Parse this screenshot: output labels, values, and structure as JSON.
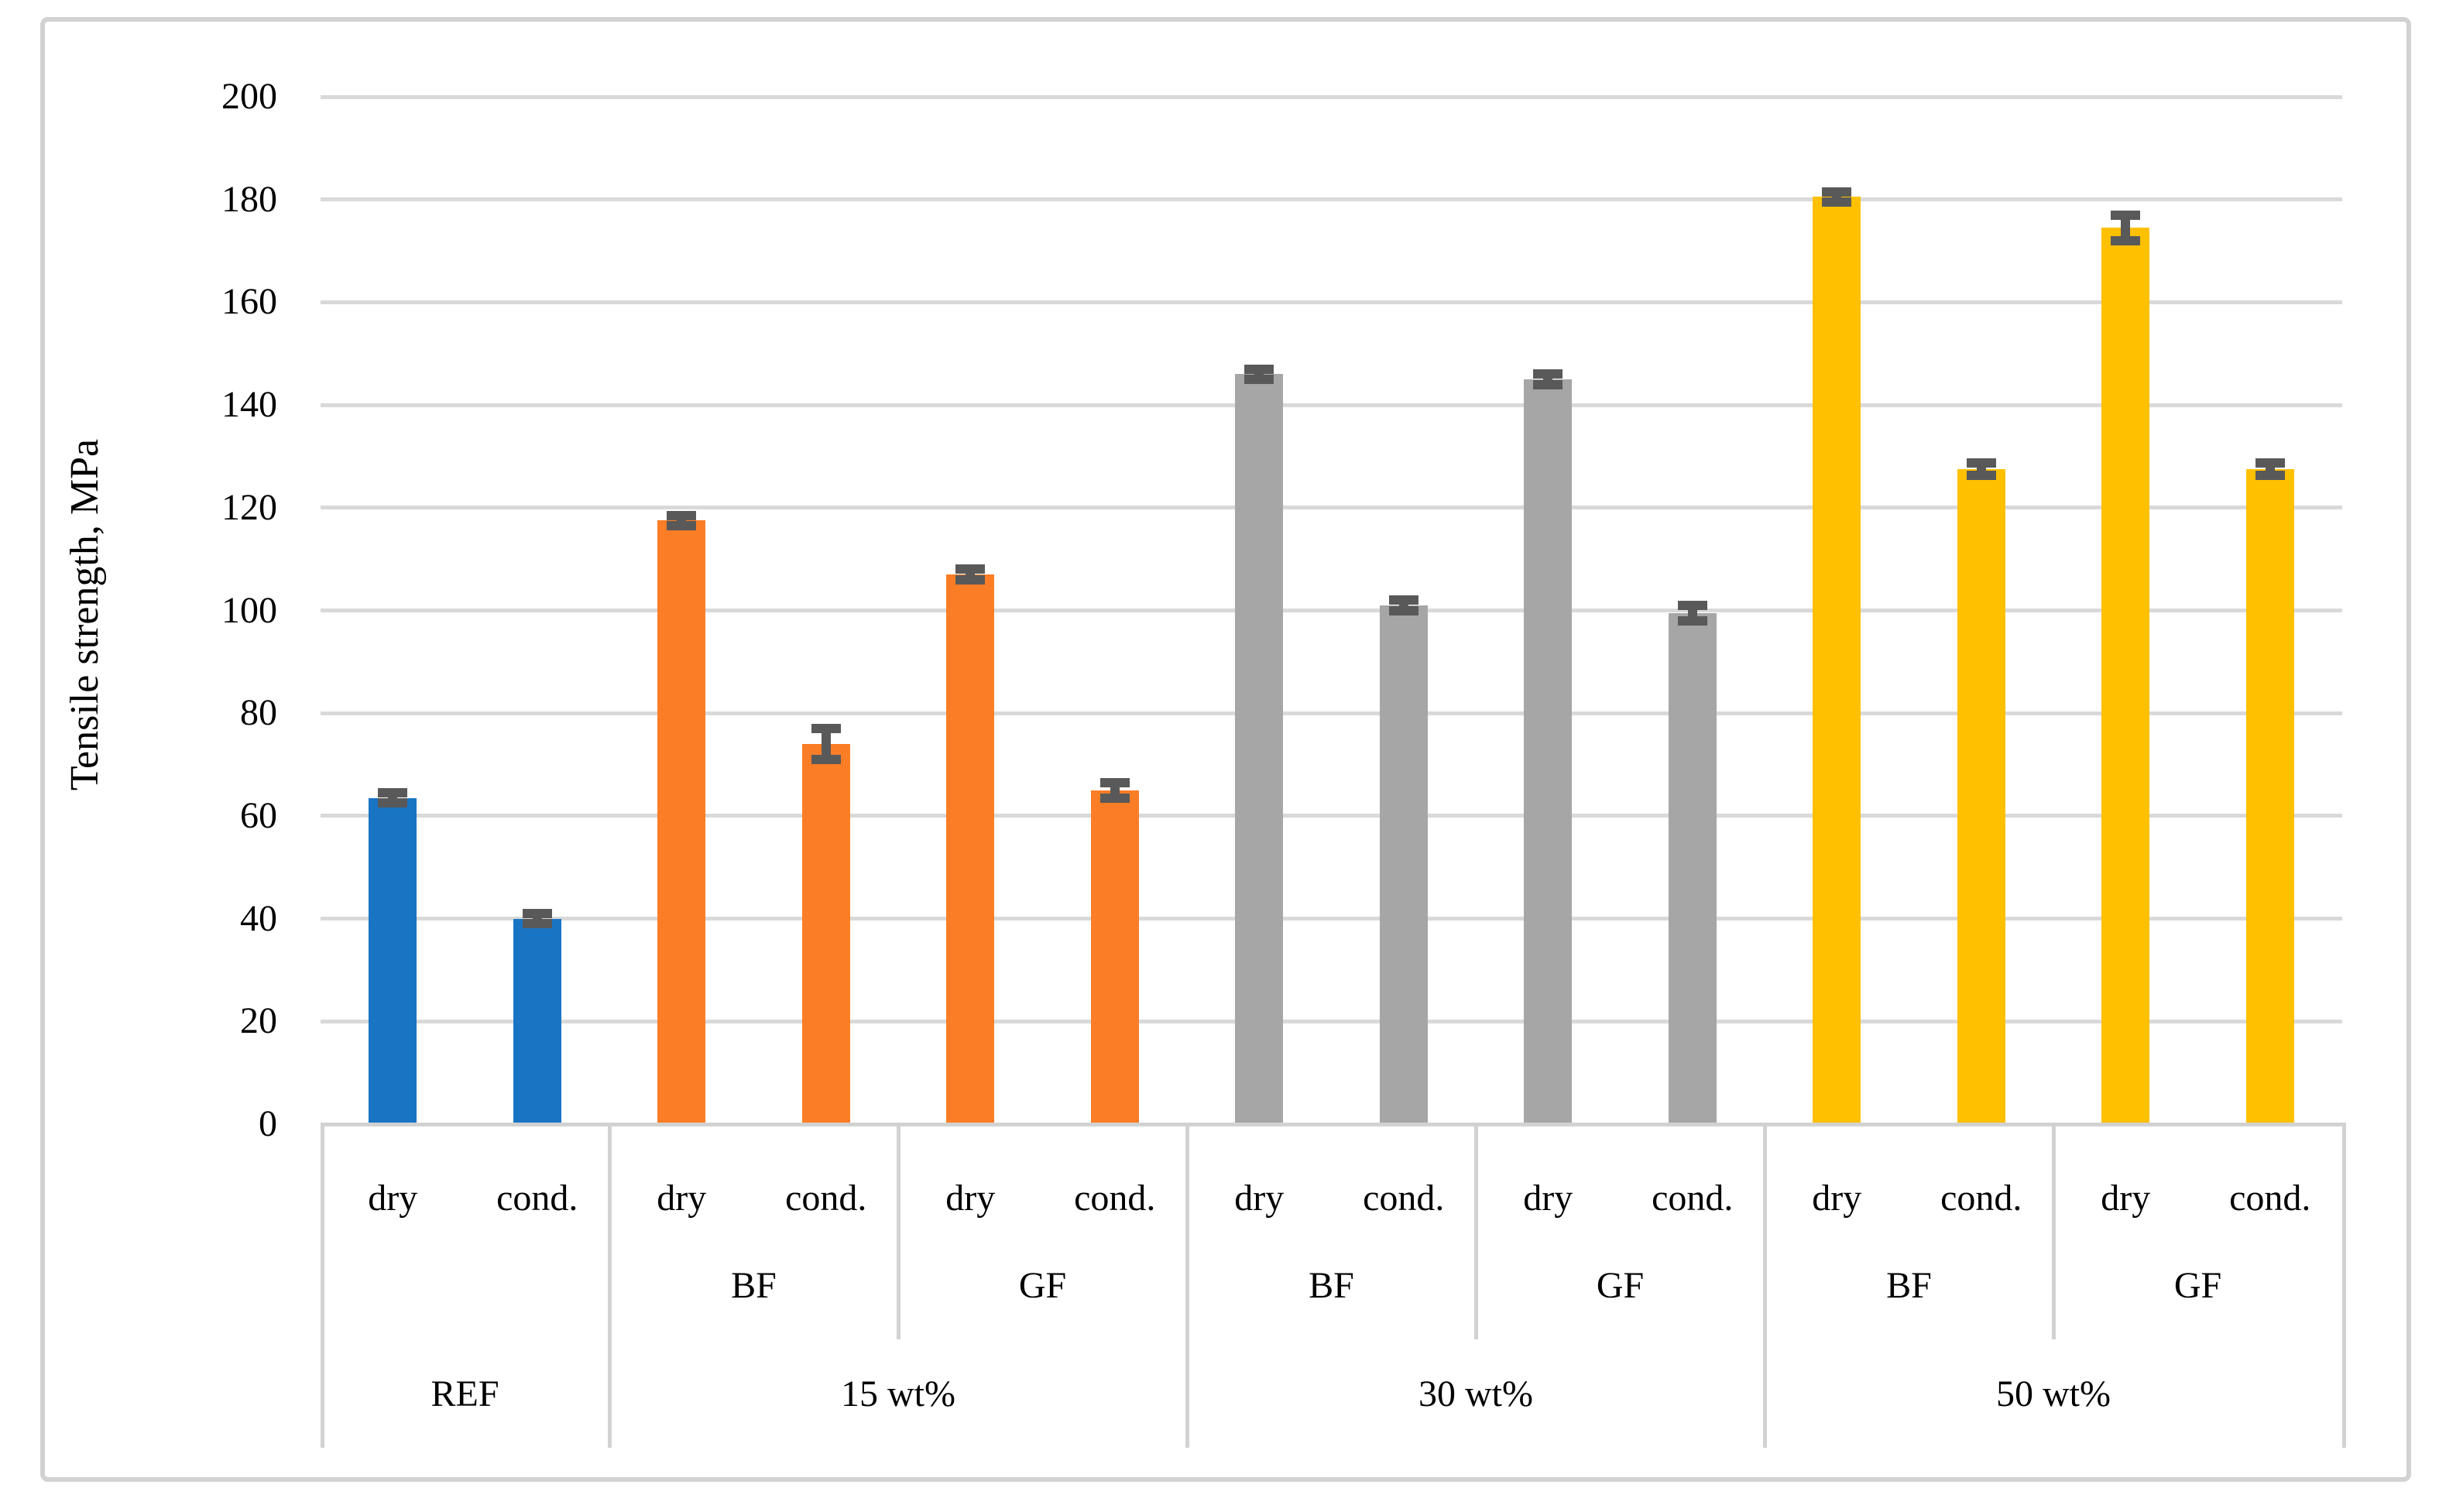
{
  "chart_data": {
    "type": "bar",
    "title": "",
    "ylabel": "Tensile strength, MPa",
    "xlabel": "",
    "ylim": [
      0,
      200
    ],
    "y_ticks": [
      0,
      20,
      40,
      60,
      80,
      100,
      120,
      140,
      160,
      180,
      200
    ],
    "grid": "horizontal",
    "legend_position": "none",
    "error_bars": true,
    "condition_labels": [
      "dry",
      "cond."
    ],
    "groups": [
      {
        "label": "REF",
        "color": "#1974C4",
        "subgroups": [
          {
            "label": "",
            "bars": [
              {
                "condition": "dry",
                "value": 63.5,
                "error": 1.0
              },
              {
                "condition": "cond.",
                "value": 40.0,
                "error": 1.0
              }
            ]
          }
        ]
      },
      {
        "label": "15 wt%",
        "color": "#FB7D26",
        "subgroups": [
          {
            "label": "BF",
            "bars": [
              {
                "condition": "dry",
                "value": 117.5,
                "error": 1.0
              },
              {
                "condition": "cond.",
                "value": 74.0,
                "error": 3.0
              }
            ]
          },
          {
            "label": "GF",
            "bars": [
              {
                "condition": "dry",
                "value": 107.0,
                "error": 1.0
              },
              {
                "condition": "cond.",
                "value": 65.0,
                "error": 1.5
              }
            ]
          }
        ]
      },
      {
        "label": "30 wt%",
        "color": "#A6A6A6",
        "subgroups": [
          {
            "label": "BF",
            "bars": [
              {
                "condition": "dry",
                "value": 146.0,
                "error": 1.0
              },
              {
                "condition": "cond.",
                "value": 101.0,
                "error": 1.0
              }
            ]
          },
          {
            "label": "GF",
            "bars": [
              {
                "condition": "dry",
                "value": 145.0,
                "error": 1.0
              },
              {
                "condition": "cond.",
                "value": 99.5,
                "error": 1.5
              }
            ]
          }
        ]
      },
      {
        "label": "50 wt%",
        "color": "#FFC000",
        "subgroups": [
          {
            "label": "BF",
            "bars": [
              {
                "condition": "dry",
                "value": 180.5,
                "error": 1.0
              },
              {
                "condition": "cond.",
                "value": 127.5,
                "error": 1.2
              }
            ]
          },
          {
            "label": "GF",
            "bars": [
              {
                "condition": "dry",
                "value": 174.5,
                "error": 2.5
              },
              {
                "condition": "cond.",
                "value": 127.5,
                "error": 1.2
              }
            ]
          }
        ]
      }
    ]
  },
  "colors": {
    "gridline": "#d9d9d9",
    "table_border": "#d2d2d2",
    "error_bar": "#595959",
    "frame_border": "#d2d2d2",
    "background": "#ffffff",
    "text": "#000000"
  }
}
